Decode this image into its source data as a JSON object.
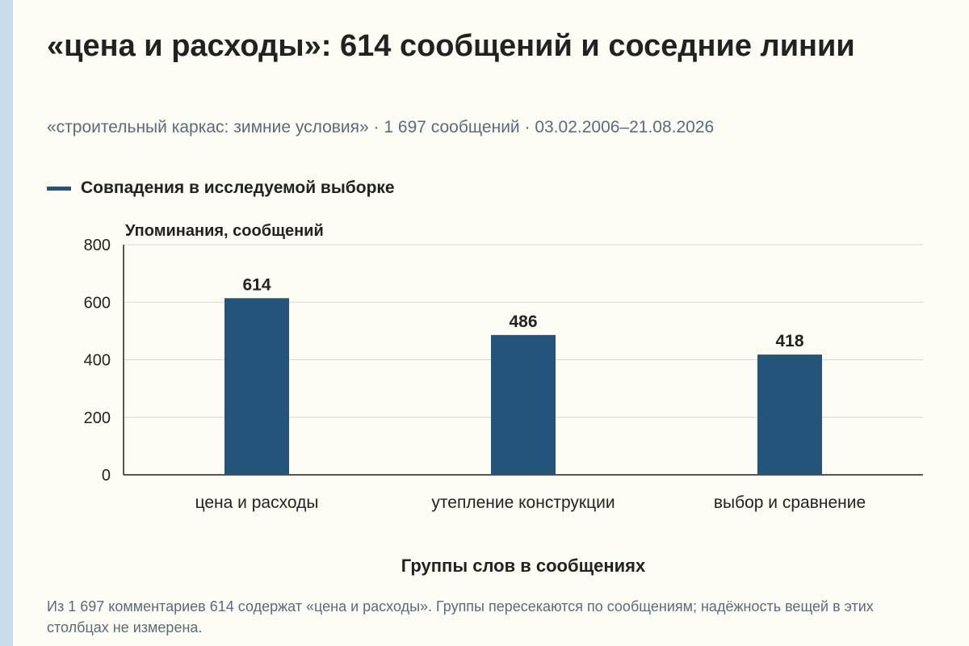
{
  "page": {
    "title": "«цена и расходы»: 614 сообщений и соседние линии",
    "subtitle": "«строительный каркас: зимние условия» · 1 697 сообщений · 03.02.2006–21.08.2026",
    "footnote": "Из 1 697 комментариев 614 содержат «цена и расходы». Группы пересекаются по сообщениям; надёжность вещей в этих столбцах не измерена."
  },
  "colors": {
    "bar": "#235479",
    "grid": "#d6d6d6",
    "axis": "#222222",
    "text": "#222222",
    "muted": "#5b6b7d",
    "stripe": "#c9dceb"
  },
  "chart_data": {
    "type": "bar",
    "categories": [
      "цена и расходы",
      "утепление конструкции",
      "выбор и сравнение"
    ],
    "series": [
      {
        "name": "Совпадения в исследуемой выборке",
        "values": [
          614,
          486,
          418
        ]
      }
    ],
    "xlabel": "Группы слов в сообщениях",
    "ylabel": "Упоминания, сообщений",
    "ylim": [
      0,
      800
    ],
    "yticks": [
      0,
      200,
      400,
      600,
      800
    ],
    "grid": true,
    "legend": "top-left"
  }
}
